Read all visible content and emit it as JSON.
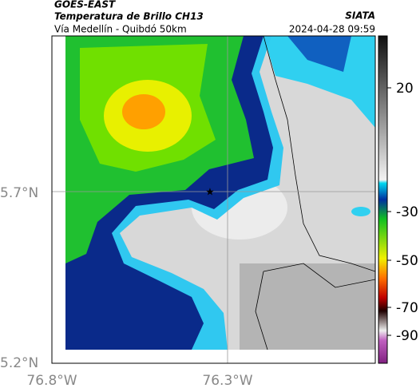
{
  "header": {
    "title": "GOES-EAST",
    "subtitle": "Temperatura de Brillo CH13",
    "route": "Vía Medellín - Quibdó 50km",
    "source": "SIATA",
    "timestamp": "2024-04-28 09:59"
  },
  "map": {
    "lat_labels": [
      "5.7°N",
      "5.2°N"
    ],
    "lon_labels": [
      "76.8°W",
      "76.3°W"
    ]
  },
  "colorbar": {
    "ticks": [
      20,
      -30,
      -50,
      -70,
      -90
    ]
  }
}
